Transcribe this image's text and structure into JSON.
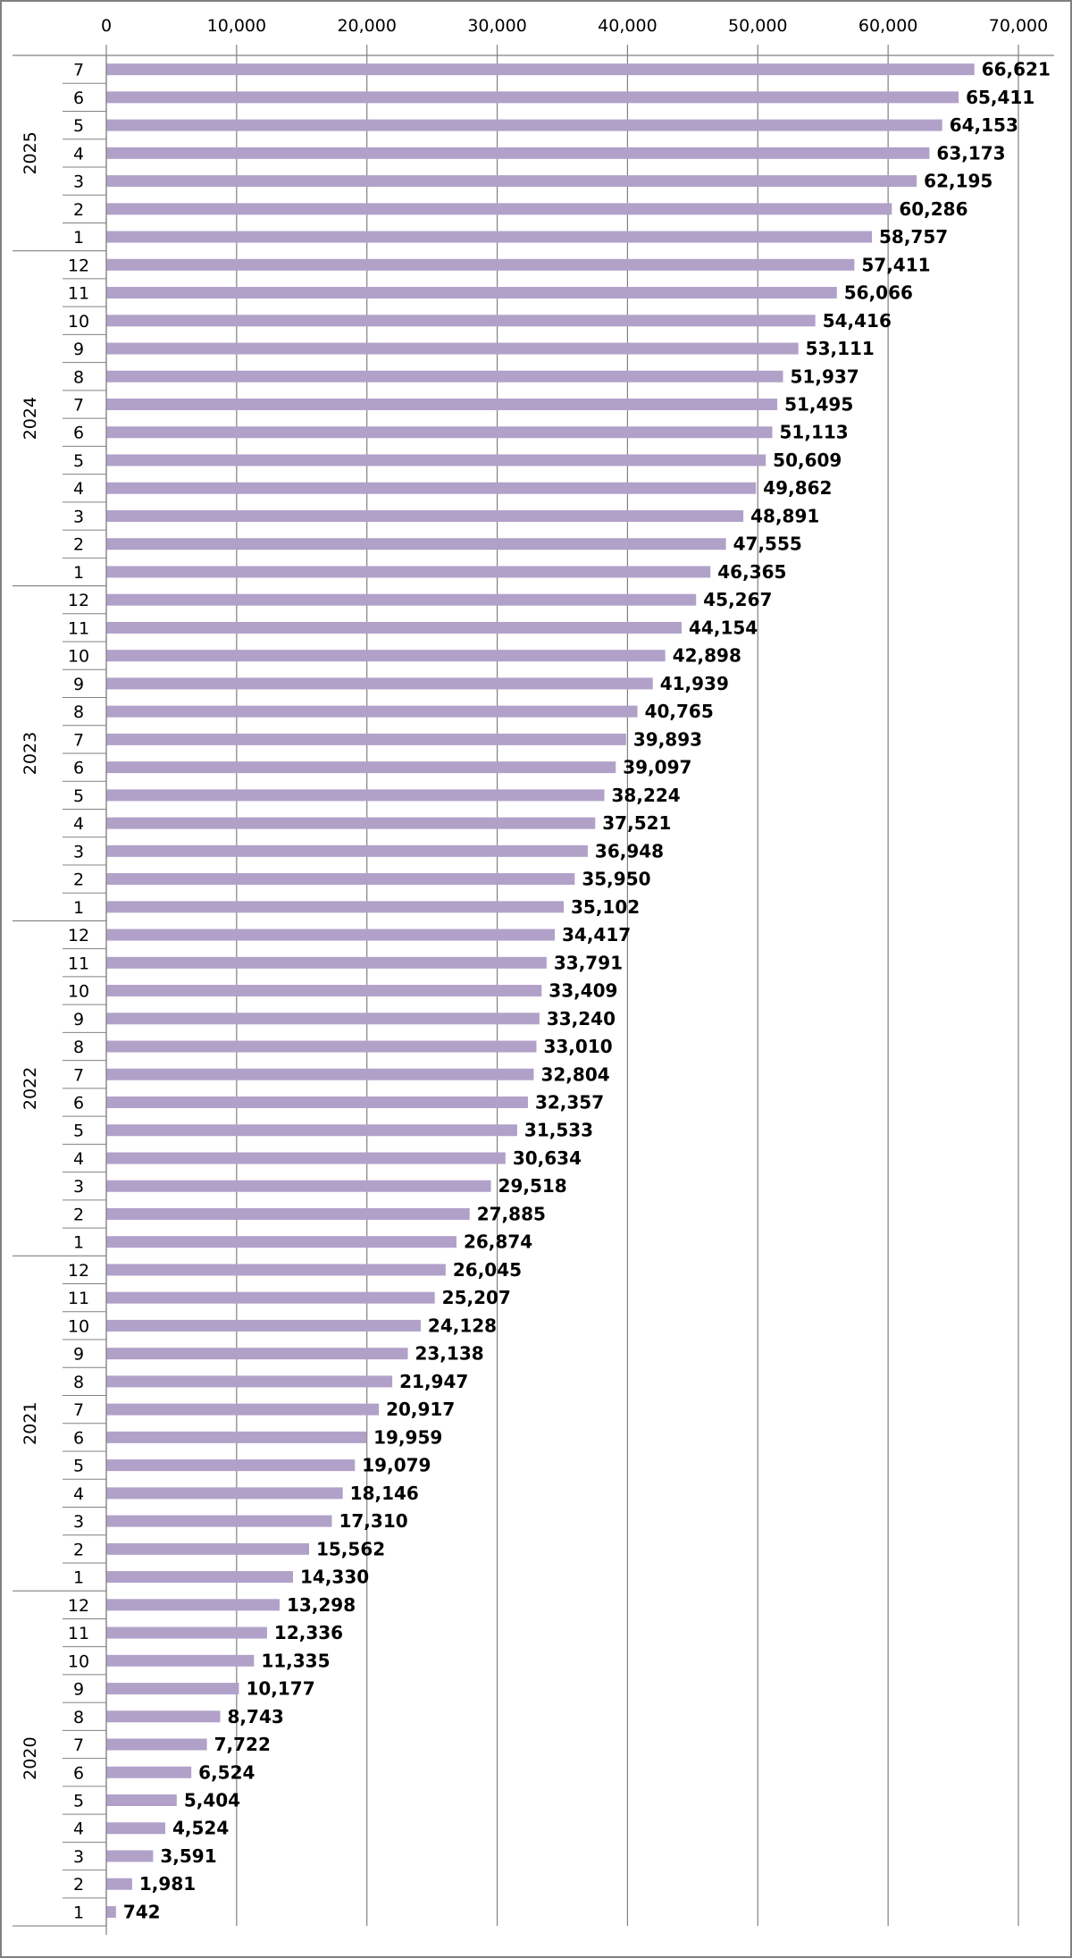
{
  "chart_data": {
    "type": "bar",
    "orientation": "horizontal",
    "title": "",
    "xlabel": "",
    "ylabel": "",
    "xlim": [
      0,
      70000
    ],
    "x_ticks": [
      {
        "value": 0,
        "label": "0"
      },
      {
        "value": 10000,
        "label": "10,000"
      },
      {
        "value": 20000,
        "label": "20,000"
      },
      {
        "value": 30000,
        "label": "30,000"
      },
      {
        "value": 40000,
        "label": "40,000"
      },
      {
        "value": 50000,
        "label": "50,000"
      },
      {
        "value": 60000,
        "label": "60,000"
      },
      {
        "value": 70000,
        "label": "70,000"
      }
    ],
    "axis_position": "top",
    "grid": "vertical",
    "legend": "none",
    "bar_color": "#b1a1c9",
    "groups": [
      {
        "year": "2025",
        "months": [
          "7",
          "6",
          "5",
          "4",
          "3",
          "2",
          "1"
        ],
        "values": [
          66621,
          65411,
          64153,
          63173,
          62195,
          60286,
          58757
        ],
        "labels": [
          "66,621",
          "65,411",
          "64,153",
          "63,173",
          "62,195",
          "60,286",
          "58,757"
        ]
      },
      {
        "year": "2024",
        "months": [
          "12",
          "11",
          "10",
          "9",
          "8",
          "7",
          "6",
          "5",
          "4",
          "3",
          "2",
          "1"
        ],
        "values": [
          57411,
          56066,
          54416,
          53111,
          51937,
          51495,
          51113,
          50609,
          49862,
          48891,
          47555,
          46365
        ],
        "labels": [
          "57,411",
          "56,066",
          "54,416",
          "53,111",
          "51,937",
          "51,495",
          "51,113",
          "50,609",
          "49,862",
          "48,891",
          "47,555",
          "46,365"
        ]
      },
      {
        "year": "2023",
        "months": [
          "12",
          "11",
          "10",
          "9",
          "8",
          "7",
          "6",
          "5",
          "4",
          "3",
          "2",
          "1"
        ],
        "values": [
          45267,
          44154,
          42898,
          41939,
          40765,
          39893,
          39097,
          38224,
          37521,
          36948,
          35950,
          35102
        ],
        "labels": [
          "45,267",
          "44,154",
          "42,898",
          "41,939",
          "40,765",
          "39,893",
          "39,097",
          "38,224",
          "37,521",
          "36,948",
          "35,950",
          "35,102"
        ]
      },
      {
        "year": "2022",
        "months": [
          "12",
          "11",
          "10",
          "9",
          "8",
          "7",
          "6",
          "5",
          "4",
          "3",
          "2",
          "1"
        ],
        "values": [
          34417,
          33791,
          33409,
          33240,
          33010,
          32804,
          32357,
          31533,
          30634,
          29518,
          27885,
          26874
        ],
        "labels": [
          "34,417",
          "33,791",
          "33,409",
          "33,240",
          "33,010",
          "32,804",
          "32,357",
          "31,533",
          "30,634",
          "29,518",
          "27,885",
          "26,874"
        ]
      },
      {
        "year": "2021",
        "months": [
          "12",
          "11",
          "10",
          "9",
          "8",
          "7",
          "6",
          "5",
          "4",
          "3",
          "2",
          "1"
        ],
        "values": [
          26045,
          25207,
          24128,
          23138,
          21947,
          20917,
          19959,
          19079,
          18146,
          17310,
          15562,
          14330
        ],
        "labels": [
          "26,045",
          "25,207",
          "24,128",
          "23,138",
          "21,947",
          "20,917",
          "19,959",
          "19,079",
          "18,146",
          "17,310",
          "15,562",
          "14,330"
        ]
      },
      {
        "year": "2020",
        "months": [
          "12",
          "11",
          "10",
          "9",
          "8",
          "7",
          "6",
          "5",
          "4",
          "3",
          "2",
          "1"
        ],
        "values": [
          13298,
          12336,
          11335,
          10177,
          8743,
          7722,
          6524,
          5404,
          4524,
          3591,
          1981,
          742
        ],
        "labels": [
          "13,298",
          "12,336",
          "11,335",
          "10,177",
          "8,743",
          "7,722",
          "6,524",
          "5,404",
          "4,524",
          "3,591",
          "1,981",
          "742"
        ]
      }
    ]
  }
}
